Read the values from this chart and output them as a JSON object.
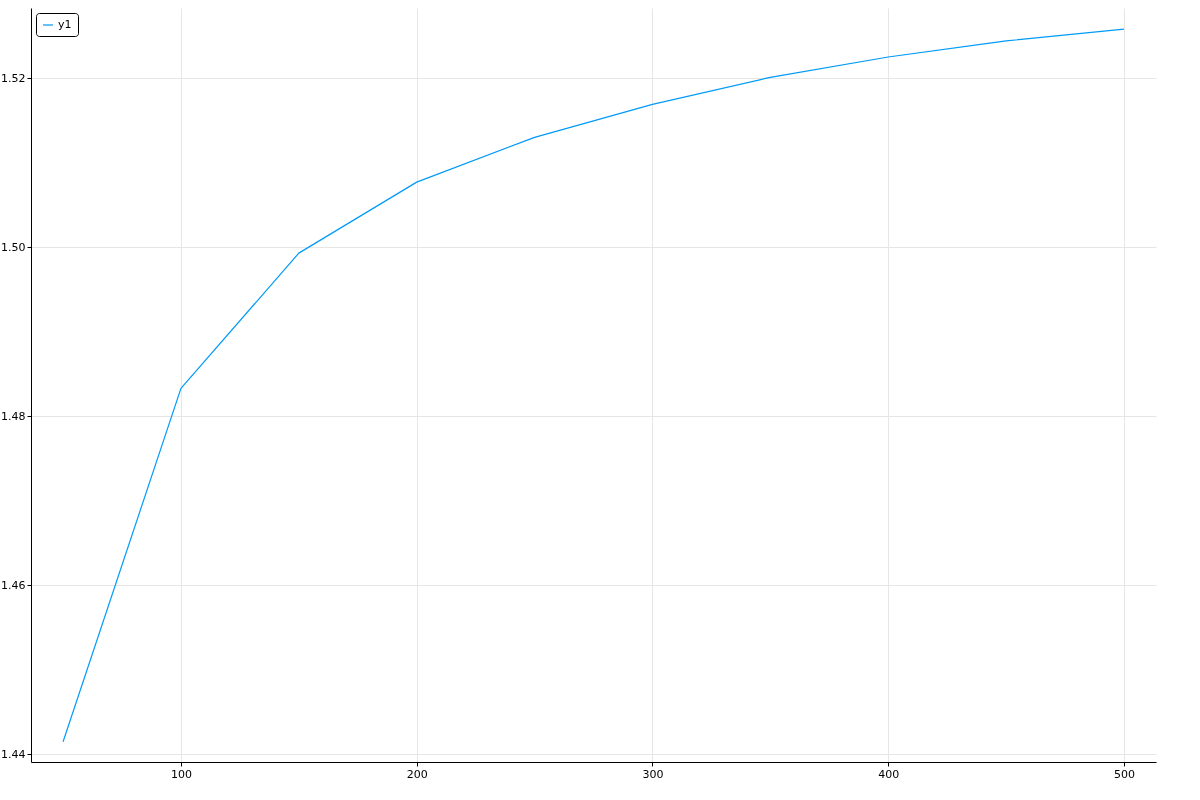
{
  "chart_data": {
    "type": "line",
    "x": [
      50,
      100,
      150,
      200,
      250,
      300,
      350,
      400,
      450,
      500
    ],
    "series": [
      {
        "name": "y1",
        "color": "#009af9",
        "values": [
          1.4415,
          1.4833,
          1.4993,
          1.5077,
          1.513,
          1.5169,
          1.5201,
          1.5225,
          1.5244,
          1.5258
        ]
      }
    ],
    "xlim": [
      36.4,
      513.6
    ],
    "xticks": [
      100,
      200,
      300,
      400,
      500
    ],
    "ylim": [
      1.4391,
      1.5283
    ],
    "yticks": [
      1.44,
      1.46,
      1.48,
      {
        "value": 1.5,
        "label": "1.50"
      },
      1.52
    ],
    "grid": true,
    "legend": "top left",
    "line_style": "solid",
    "marker": "none"
  }
}
